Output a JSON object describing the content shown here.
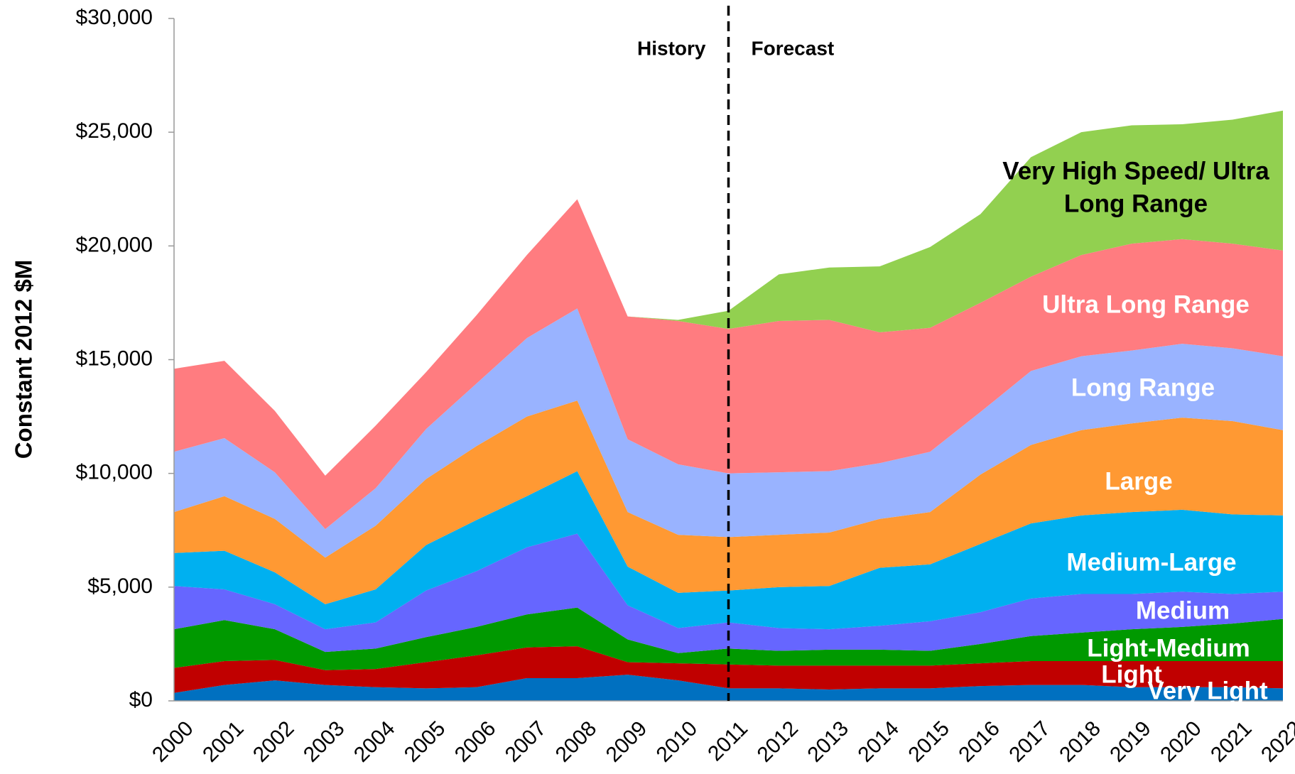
{
  "chart_data": {
    "type": "stacked_area",
    "y_label": "Constant 2012 $M",
    "annotations": [
      "History",
      "Forecast"
    ],
    "categories": [
      "2000",
      "2001",
      "2002",
      "2003",
      "2004",
      "2005",
      "2006",
      "2007",
      "2008",
      "2009",
      "2010",
      "2011",
      "2012",
      "2013",
      "2014",
      "2015",
      "2016",
      "2017",
      "2018",
      "2019",
      "2020",
      "2021",
      "2022"
    ],
    "series": [
      {
        "name": "Very Light",
        "color": "#0070c0",
        "values": [
          350,
          700,
          900,
          700,
          600,
          550,
          600,
          1000,
          1000,
          1150,
          900,
          550,
          550,
          500,
          550,
          550,
          650,
          700,
          700,
          600,
          600,
          600,
          550
        ]
      },
      {
        "name": "Light",
        "color": "#c00000",
        "values": [
          1100,
          1050,
          900,
          650,
          800,
          1150,
          1400,
          1350,
          1400,
          550,
          750,
          1050,
          1000,
          1050,
          1000,
          1000,
          1000,
          1050,
          1050,
          1150,
          1150,
          1150,
          1200
        ]
      },
      {
        "name": "Light-Medium",
        "color": "#009900",
        "values": [
          1700,
          1800,
          1350,
          800,
          900,
          1100,
          1250,
          1450,
          1700,
          1000,
          450,
          700,
          650,
          700,
          700,
          650,
          850,
          1100,
          1250,
          1400,
          1500,
          1650,
          1850
        ]
      },
      {
        "name": "Medium",
        "color": "#6666ff",
        "values": [
          1900,
          1350,
          1100,
          1000,
          1150,
          2050,
          2450,
          2950,
          3250,
          1500,
          1100,
          1150,
          1000,
          900,
          1050,
          1300,
          1400,
          1650,
          1700,
          1550,
          1550,
          1300,
          1200
        ]
      },
      {
        "name": "Medium-Large",
        "color": "#00b0f0",
        "values": [
          1450,
          1700,
          1400,
          1100,
          1450,
          2000,
          2250,
          2250,
          2750,
          1700,
          1550,
          1400,
          1800,
          1900,
          2550,
          2500,
          3000,
          3300,
          3450,
          3600,
          3600,
          3500,
          3350
        ]
      },
      {
        "name": "Large",
        "color": "#ff9933",
        "values": [
          1800,
          2400,
          2350,
          2050,
          2800,
          2900,
          3250,
          3500,
          3100,
          2400,
          2550,
          2350,
          2300,
          2350,
          2150,
          2300,
          3050,
          3450,
          3750,
          3900,
          4050,
          4100,
          3750
        ]
      },
      {
        "name": "Long Range",
        "color": "#99b3ff",
        "values": [
          2650,
          2550,
          2050,
          1250,
          1650,
          2200,
          2750,
          3450,
          4050,
          3200,
          3100,
          2800,
          2750,
          2700,
          2450,
          2650,
          2750,
          3250,
          3250,
          3200,
          3250,
          3200,
          3250
        ]
      },
      {
        "name": "Ultra Long Range",
        "color": "#ff7c80",
        "values": [
          3650,
          3400,
          2700,
          2350,
          2750,
          2500,
          3000,
          3650,
          4800,
          5400,
          6300,
          6350,
          6650,
          6650,
          5750,
          5450,
          4800,
          4150,
          4450,
          4700,
          4600,
          4600,
          4650
        ]
      },
      {
        "name": "Very High Speed/ Ultra Long Range",
        "color": "#92d050",
        "values": [
          0,
          0,
          0,
          0,
          0,
          0,
          0,
          0,
          0,
          0,
          50,
          800,
          2050,
          2300,
          2900,
          3550,
          3900,
          5250,
          5400,
          5200,
          5050,
          5450,
          6150
        ]
      }
    ],
    "ylim": [
      0,
      30000
    ],
    "yticks": [
      {
        "value": 0,
        "label": "$0"
      },
      {
        "value": 5000,
        "label": "$5,000"
      },
      {
        "value": 10000,
        "label": "$10,000"
      },
      {
        "value": 15000,
        "label": "$15,000"
      },
      {
        "value": 20000,
        "label": "$20,000"
      },
      {
        "value": 25000,
        "label": "$25,000"
      },
      {
        "value": 30000,
        "label": "$30,000"
      }
    ],
    "grid": false
  }
}
